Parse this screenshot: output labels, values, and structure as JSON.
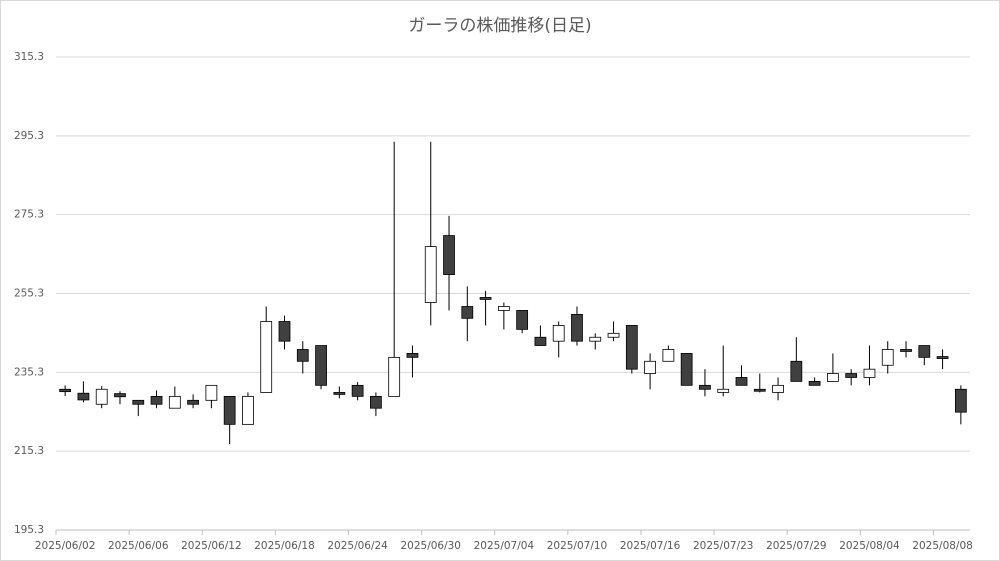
{
  "chart_data": {
    "type": "candlestick",
    "title": "ガーラの株価推移(日足)",
    "categories": [
      "2025/06/02",
      null,
      null,
      null,
      "2025/06/06",
      null,
      null,
      null,
      "2025/06/12",
      null,
      null,
      null,
      "2025/06/18",
      null,
      null,
      null,
      "2025/06/24",
      null,
      null,
      null,
      "2025/06/30",
      null,
      null,
      null,
      "2025/07/04",
      null,
      null,
      null,
      "2025/07/10",
      null,
      null,
      null,
      "2025/07/16",
      null,
      null,
      null,
      "2025/07/23",
      null,
      null,
      null,
      "2025/07/29",
      null,
      null,
      null,
      "2025/08/04",
      null,
      null,
      null,
      "2025/08/08",
      null
    ],
    "open": [
      231.0,
      230.0,
      227.2,
      229.9,
      228.2,
      229.2,
      226.2,
      228.2,
      228.2,
      229.2,
      222.1,
      230.2,
      248.2,
      241.1,
      242.1,
      230.2,
      232.0,
      229.2,
      229.2,
      240.1,
      253.0,
      270.0,
      252.0,
      254.3,
      251.0,
      251.0,
      244.2,
      243.2,
      250.0,
      243.2,
      244.2,
      247.2,
      235.0,
      238.1,
      240.1,
      232.0,
      230.2,
      234.0,
      231.0,
      230.2,
      238.1,
      233.0,
      233.0,
      235.0,
      234.0,
      237.1,
      241.1,
      242.1,
      239.3,
      231.0
    ],
    "high": [
      232.0,
      233.0,
      231.8,
      230.5,
      228.2,
      230.7,
      231.7,
      229.7,
      232.0,
      229.2,
      230.2,
      252.0,
      249.7,
      243.2,
      242.1,
      231.7,
      232.8,
      230.2,
      293.8,
      242.1,
      293.8,
      275.0,
      257.1,
      256.0,
      253.0,
      251.0,
      247.2,
      248.2,
      252.0,
      245.2,
      248.2,
      247.2,
      240.1,
      242.1,
      240.1,
      236.1,
      242.1,
      237.1,
      235.0,
      234.0,
      244.2,
      234.0,
      240.1,
      236.1,
      242.1,
      243.2,
      243.2,
      242.1,
      241.1,
      232.0
    ],
    "low": [
      229.3,
      227.7,
      226.2,
      227.2,
      224.2,
      226.2,
      226.2,
      226.2,
      226.2,
      217.1,
      222.1,
      230.2,
      241.1,
      235.0,
      231.0,
      228.7,
      228.2,
      224.2,
      229.2,
      234.0,
      247.2,
      251.0,
      243.2,
      247.2,
      246.2,
      245.2,
      242.1,
      239.1,
      242.1,
      241.1,
      243.2,
      235.0,
      231.0,
      238.1,
      232.0,
      229.2,
      229.2,
      232.0,
      230.2,
      228.2,
      233.0,
      232.0,
      233.0,
      232.0,
      232.0,
      235.0,
      239.1,
      237.1,
      236.1,
      222.1
    ],
    "close": [
      230.4,
      228.3,
      231.0,
      229.1,
      227.2,
      227.2,
      229.2,
      227.2,
      232.0,
      222.1,
      229.2,
      248.2,
      243.2,
      238.1,
      232.0,
      229.7,
      229.2,
      226.2,
      239.1,
      239.1,
      267.2,
      260.1,
      249.0,
      253.8,
      252.0,
      246.2,
      242.1,
      247.2,
      243.2,
      244.2,
      245.2,
      236.1,
      238.1,
      241.1,
      232.0,
      231.0,
      231.0,
      232.0,
      230.5,
      232.0,
      233.0,
      232.0,
      235.0,
      234.0,
      236.1,
      241.1,
      240.6,
      239.1,
      238.8,
      225.2
    ],
    "up_color": "#ffffff",
    "down_color": "#404040",
    "line_color": "#000000",
    "ylim": [
      195.3,
      315.3
    ],
    "yticks": [
      195.3,
      215.3,
      235.3,
      255.3,
      275.3,
      295.3,
      315.3
    ],
    "grid": true
  }
}
